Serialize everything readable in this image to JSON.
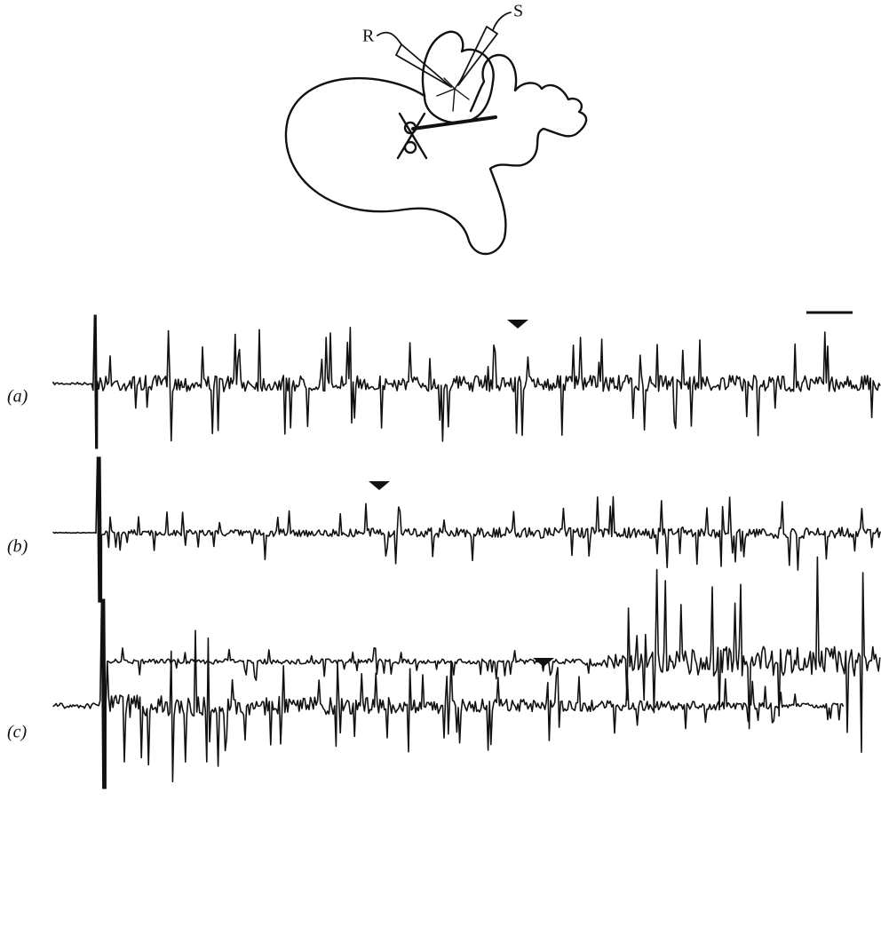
{
  "labels": {
    "electrodes": [
      "R",
      "S"
    ],
    "panels": [
      "(a)",
      "(b)",
      "(c)"
    ]
  }
}
